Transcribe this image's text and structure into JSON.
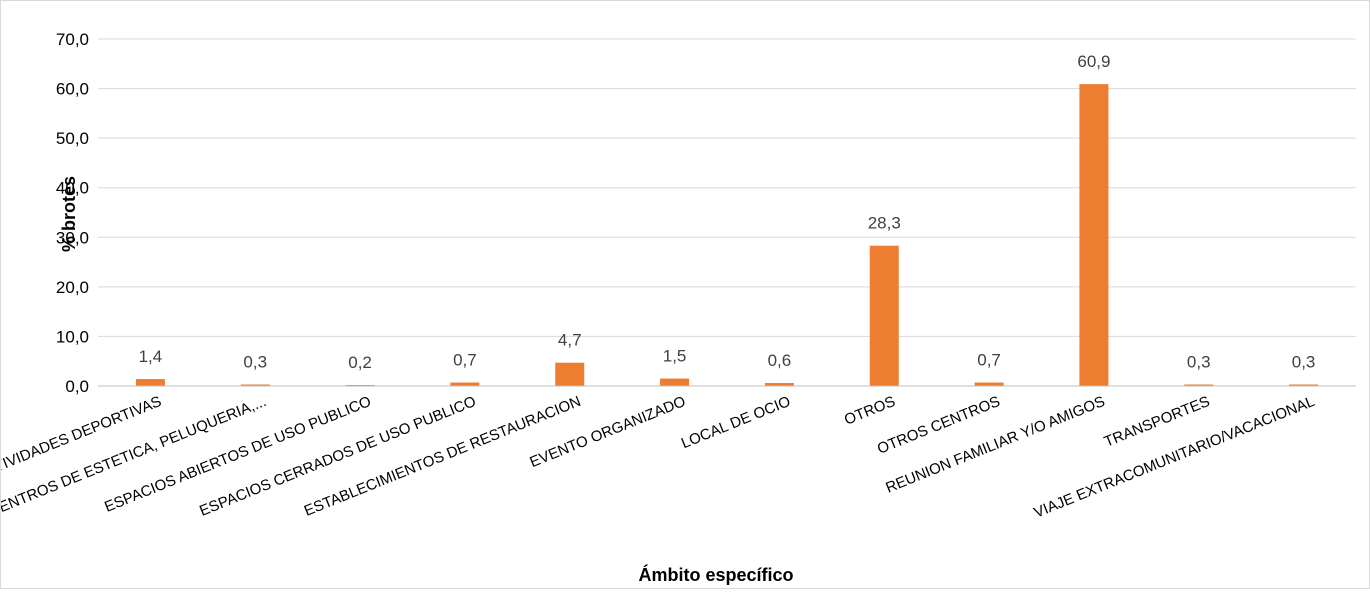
{
  "chart_data": {
    "type": "bar",
    "title": "",
    "xlabel": "Ámbito específico",
    "ylabel": "% brotes",
    "ylim": [
      0,
      70
    ],
    "ytick_step": 10,
    "ytick_labels": [
      "0,0",
      "10,0",
      "20,0",
      "30,0",
      "40,0",
      "50,0",
      "60,0",
      "70,0"
    ],
    "grid": true,
    "legend": "none",
    "bar_color": "#ED7D31",
    "categories": [
      "ACTIVIDADES DEPORTIVAS",
      "CENTROS DE ESTETICA, PELUQUERIA,...",
      "ESPACIOS ABIERTOS DE USO PUBLICO",
      "ESPACIOS CERRADOS DE USO PUBLICO",
      "ESTABLECIMIENTOS DE RESTAURACION",
      "EVENTO ORGANIZADO",
      "LOCAL DE OCIO",
      "OTROS",
      "OTROS CENTROS",
      "REUNION FAMILIAR Y/O AMIGOS",
      "TRANSPORTES",
      "VIAJE EXTRACOMUNITARIO/VACACIONAL"
    ],
    "values": [
      1.4,
      0.3,
      0.2,
      0.7,
      4.7,
      1.5,
      0.6,
      28.3,
      0.7,
      60.9,
      0.3,
      0.3
    ],
    "data_labels": [
      "1,4",
      "0,3",
      "0,2",
      "0,7",
      "4,7",
      "1,5",
      "0,6",
      "28,3",
      "0,7",
      "60,9",
      "0,3",
      "0,3"
    ]
  }
}
